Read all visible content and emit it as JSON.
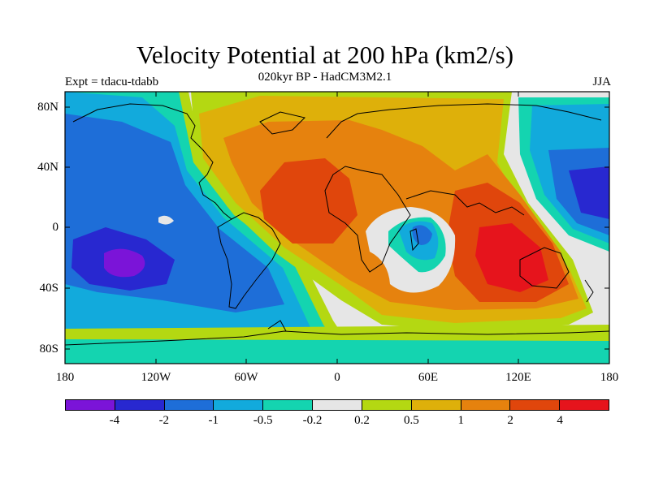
{
  "title": "Velocity Potential at 200 hPa (km2/s)",
  "subtitle": "020kyr BP - HadCM3M2.1",
  "expt": "Expt = tdacu-tdabb",
  "season": "JJA",
  "lat_labels": [
    "80N",
    "40N",
    "0",
    "40S",
    "80S"
  ],
  "lon_labels": [
    "180",
    "120W",
    "60W",
    "0",
    "60E",
    "120E",
    "180"
  ],
  "colorbar": {
    "colors": [
      "#7b14d8",
      "#2828d0",
      "#1e6ed8",
      "#12aadc",
      "#14d4b0",
      "#e6e6e6",
      "#b4d812",
      "#deb00a",
      "#e6820e",
      "#e0460c",
      "#e6141c"
    ],
    "labels": [
      "-4",
      "-2",
      "-1",
      "-0.5",
      "-0.2",
      "0.2",
      "0.5",
      "1",
      "2",
      "4"
    ]
  }
}
